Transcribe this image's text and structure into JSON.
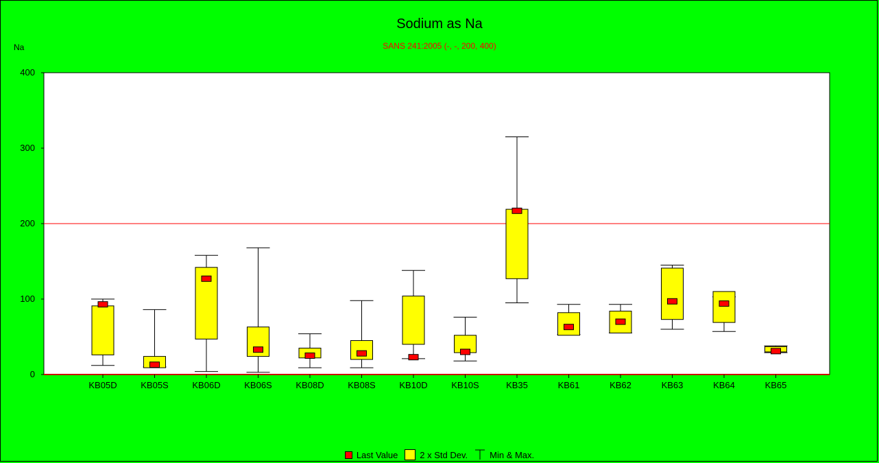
{
  "chart_data": {
    "type": "boxplot",
    "title": "Sodium as Na",
    "subtitle": "SANS 241:2005 (-, -, 200, 400)",
    "ylabel": "Na",
    "ylim": [
      0,
      400
    ],
    "yticks": [
      0,
      100,
      200,
      300,
      400
    ],
    "reference_line": 200,
    "categories": [
      "KB05D",
      "KB05S",
      "KB06D",
      "KB06S",
      "KB08D",
      "KB08S",
      "KB10D",
      "KB10S",
      "KB35",
      "KB61",
      "KB62",
      "KB63",
      "KB64",
      "KB65"
    ],
    "series": [
      {
        "name": "Last Value",
        "values": [
          93,
          13,
          127,
          33,
          25,
          28,
          23,
          30,
          217,
          63,
          70,
          97,
          94,
          31
        ]
      },
      {
        "name": "2 x Std Dev.",
        "values": [
          [
            26,
            91
          ],
          [
            9,
            24
          ],
          [
            47,
            142
          ],
          [
            24,
            63
          ],
          [
            22,
            35
          ],
          [
            20,
            45
          ],
          [
            40,
            104
          ],
          [
            29,
            52
          ],
          [
            127,
            219
          ],
          [
            52,
            82
          ],
          [
            55,
            84
          ],
          [
            73,
            141
          ],
          [
            69,
            110
          ],
          [
            30,
            37
          ]
        ]
      },
      {
        "name": "Min & Max.",
        "values": [
          [
            12,
            100
          ],
          [
            10,
            86
          ],
          [
            4,
            158
          ],
          [
            3,
            168
          ],
          [
            9,
            54
          ],
          [
            9,
            98
          ],
          [
            21,
            138
          ],
          [
            18,
            76
          ],
          [
            95,
            315
          ],
          [
            53,
            93
          ],
          [
            55,
            93
          ],
          [
            60,
            145
          ],
          [
            57,
            103
          ],
          [
            29,
            38
          ]
        ]
      }
    ],
    "colors": {
      "last": "#ff0000",
      "box": "#ffff00",
      "reference": "#ff0000",
      "background": "#00ff00",
      "plot": "#ffffff"
    },
    "legend_position": "bottom-center",
    "grid": false
  },
  "legend": {
    "last_value": "Last Value",
    "std_dev": "2 x Std Dev.",
    "min_max": "Min & Max."
  }
}
